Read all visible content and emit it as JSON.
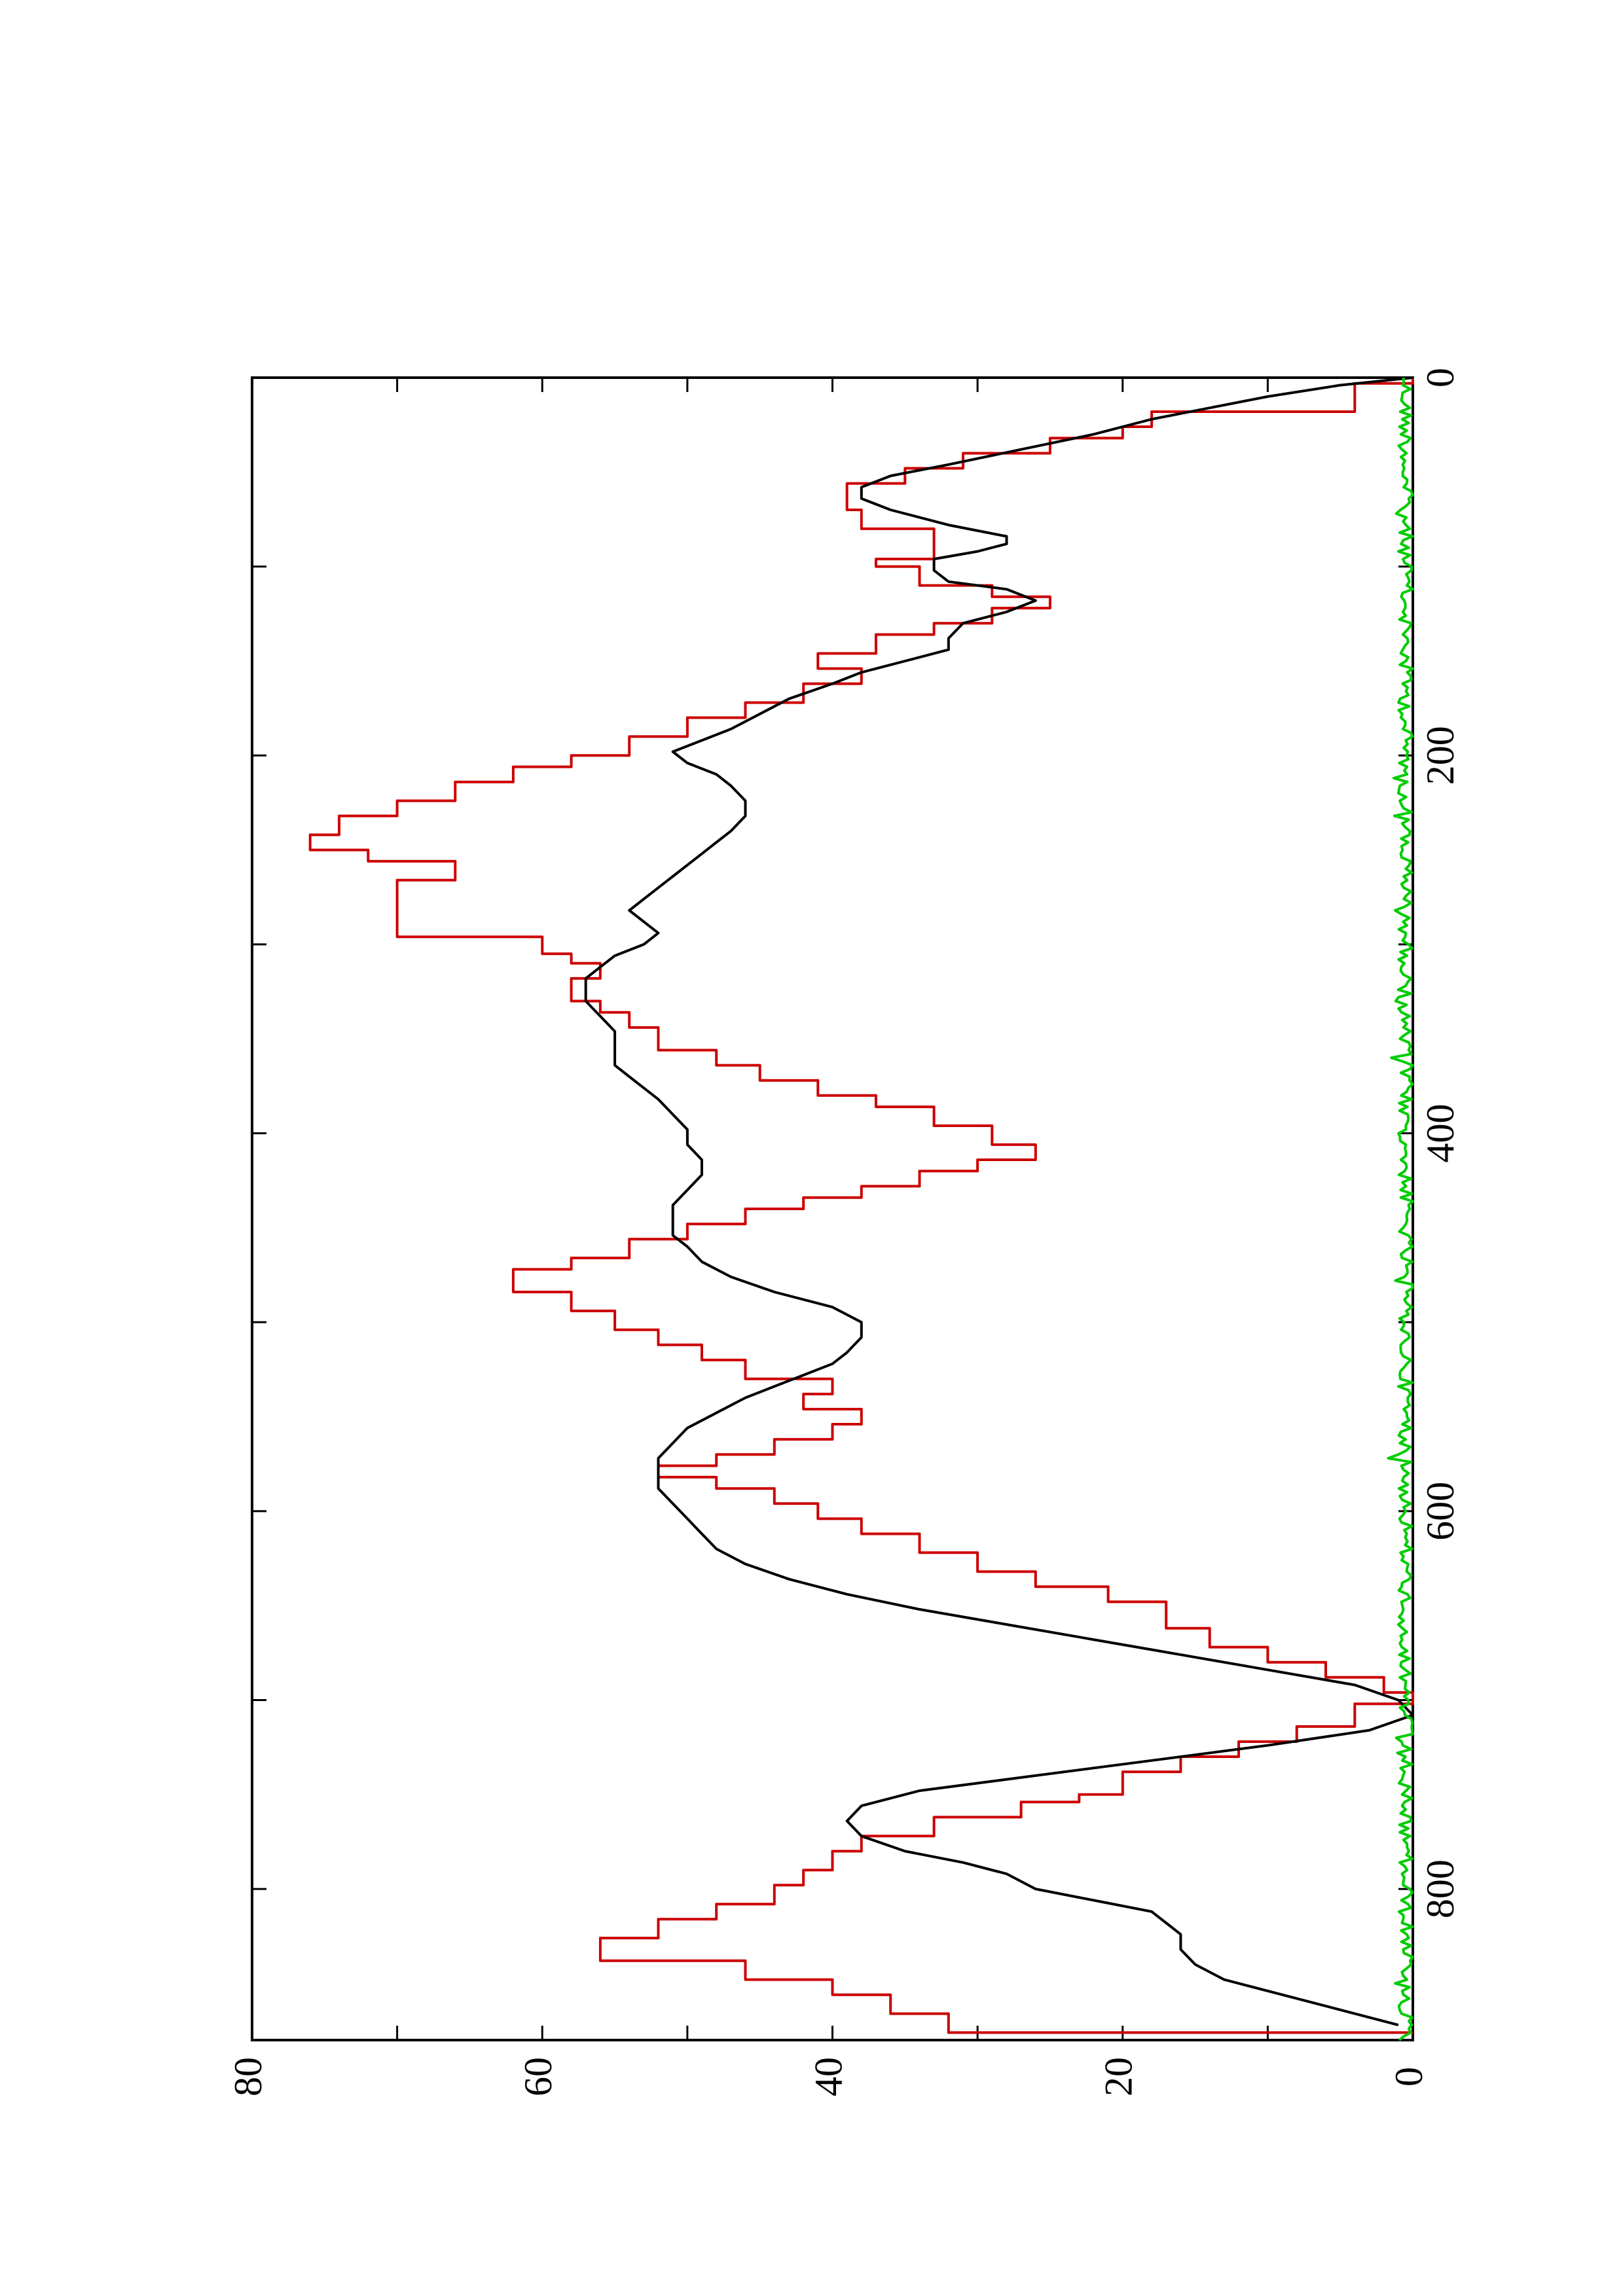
{
  "chart_data": {
    "type": "line",
    "orientation": "rotated 90 degrees clockwise (x axis runs down the page, y axis runs right-to-left)",
    "title": "",
    "xlabel": "",
    "ylabel": "",
    "xlim": [
      0,
      880
    ],
    "ylim": [
      0,
      80
    ],
    "x_ticks": [
      0,
      200,
      400,
      600,
      800
    ],
    "y_ticks": [
      0,
      20,
      40,
      60,
      80
    ],
    "grid": false,
    "legend": "none",
    "series": [
      {
        "color": "#cc0000",
        "style": "step",
        "x": [
          0,
          3,
          18,
          26,
          32,
          40,
          48,
          56,
          70,
          80,
          96,
          100,
          110,
          116,
          122,
          130,
          136,
          146,
          154,
          162,
          172,
          180,
          190,
          200,
          206,
          214,
          224,
          232,
          242,
          250,
          256,
          266,
          270,
          296,
          305,
          310,
          318,
          322,
          330,
          336,
          344,
          356,
          364,
          372,
          380,
          386,
          396,
          406,
          414,
          420,
          428,
          434,
          440,
          448,
          456,
          466,
          472,
          484,
          494,
          504,
          512,
          520,
          530,
          538,
          546,
          554,
          562,
          570,
          576,
          582,
          588,
          596,
          604,
          612,
          622,
          632,
          640,
          648,
          662,
          672,
          680,
          688,
          696,
          702,
          714,
          722,
          730,
          738,
          750,
          754,
          762,
          772,
          780,
          790,
          798,
          808,
          816,
          826,
          838,
          848,
          856,
          866,
          876
        ],
        "y": [
          0,
          4,
          18,
          20,
          25,
          31,
          35,
          39,
          38,
          33,
          37,
          34,
          29,
          25,
          29,
          33,
          37,
          41,
          38,
          42,
          46,
          50,
          54,
          58,
          62,
          66,
          70,
          74,
          76,
          72,
          66,
          70,
          70,
          60,
          58,
          56,
          58,
          58,
          56,
          54,
          52,
          48,
          45,
          41,
          37,
          33,
          29,
          26,
          30,
          34,
          38,
          42,
          46,
          50,
          54,
          58,
          62,
          58,
          55,
          52,
          49,
          46,
          40,
          42,
          38,
          40,
          44,
          48,
          52,
          48,
          44,
          41,
          38,
          34,
          30,
          26,
          21,
          17,
          14,
          10,
          6,
          2,
          0,
          4,
          8,
          12,
          16,
          20,
          23,
          27,
          33,
          38,
          40,
          42,
          44,
          48,
          52,
          56,
          46,
          40,
          36,
          32,
          0
        ]
      },
      {
        "color": "#000000",
        "style": "line",
        "x": [
          0,
          4,
          10,
          16,
          22,
          30,
          38,
          46,
          52,
          58,
          64,
          70,
          78,
          84,
          88,
          92,
          96,
          102,
          108,
          112,
          118,
          124,
          130,
          138,
          144,
          150,
          156,
          162,
          170,
          178,
          186,
          192,
          198,
          204,
          210,
          216,
          224,
          232,
          240,
          246,
          252,
          258,
          264,
          270,
          276,
          282,
          288,
          294,
          300,
          306,
          312,
          318,
          324,
          330,
          338,
          346,
          352,
          358,
          364,
          370,
          376,
          382,
          390,
          398,
          406,
          414,
          422,
          430,
          438,
          446,
          454,
          460,
          468,
          476,
          484,
          492,
          500,
          508,
          516,
          522,
          528,
          534,
          540,
          548,
          556,
          564,
          572,
          580,
          588,
          596,
          604,
          612,
          620,
          628,
          636,
          644,
          652,
          660,
          668,
          676,
          684,
          692,
          700,
          708,
          716,
          724,
          732,
          740,
          748,
          756,
          764,
          772,
          780,
          786,
          792,
          800,
          806,
          812,
          818,
          824,
          832,
          840,
          848,
          856,
          864,
          872
        ],
        "y": [
          0,
          5,
          10,
          14,
          18,
          22,
          27,
          32,
          36,
          38,
          38,
          36,
          32,
          28,
          28,
          30,
          33,
          33,
          32,
          28,
          26,
          28,
          31,
          32,
          32,
          35,
          38,
          40,
          43,
          45,
          47,
          49,
          51,
          50,
          48,
          47,
          46,
          46,
          47,
          48,
          49,
          50,
          51,
          52,
          53,
          54,
          53,
          52,
          53,
          55,
          56,
          57,
          57,
          57,
          56,
          55,
          55,
          55,
          55,
          54,
          53,
          52,
          51,
          50,
          50,
          49,
          49,
          50,
          51,
          51,
          51,
          50,
          49,
          47,
          44,
          40,
          38,
          38,
          39,
          40,
          42,
          44,
          46,
          48,
          50,
          51,
          52,
          52,
          52,
          51,
          50,
          49,
          48,
          46,
          43,
          39,
          34,
          28,
          22,
          16,
          10,
          4,
          1,
          0,
          3,
          10,
          18,
          26,
          34,
          38,
          39,
          38,
          35,
          31,
          28,
          26,
          22,
          18,
          17,
          16,
          16,
          15,
          13,
          9,
          5,
          1
        ]
      },
      {
        "color": "#00cc00",
        "style": "noisy-line",
        "x_start": 0,
        "x_end": 880,
        "x_step": 2,
        "y_baseline": 0,
        "y_amplitude": 1.0,
        "y_max": 1.8
      }
    ]
  }
}
